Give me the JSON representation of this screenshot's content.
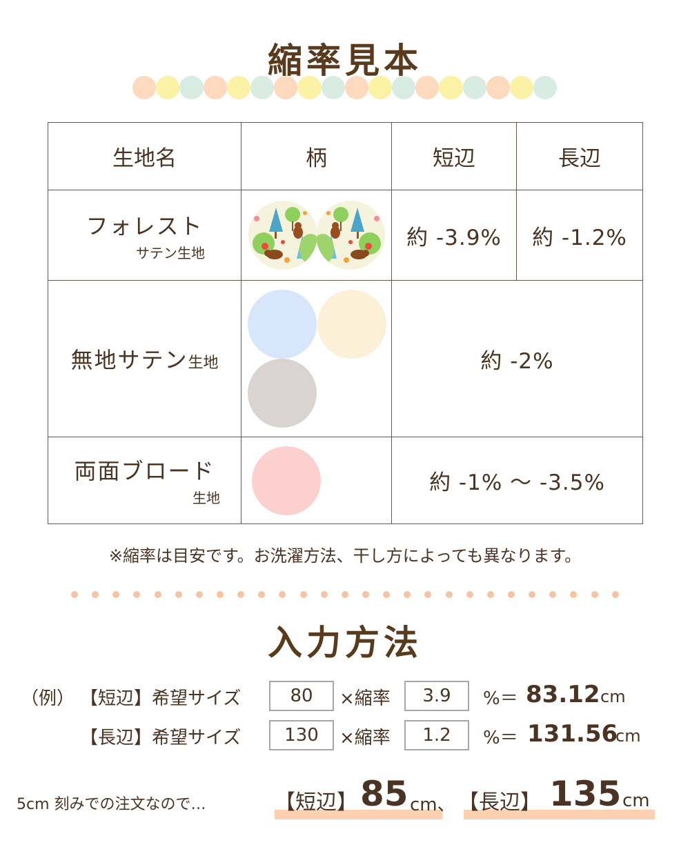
{
  "section1": {
    "title": "縮率見本",
    "scallop_colors": [
      "#fdd9bd",
      "#fcf2a6",
      "#d8ece4",
      "#fdd9bd",
      "#fcf2a6",
      "#d8ece4",
      "#fdd9bd",
      "#fcf2a6",
      "#d8ece4",
      "#fdd9bd",
      "#fcf2a6",
      "#d8ece4",
      "#fdd9bd",
      "#fcf2a6",
      "#d8ece4",
      "#fdd9bd",
      "#fcf2a6",
      "#d8ece4"
    ]
  },
  "table": {
    "headers": [
      "生地名",
      "柄",
      "短辺",
      "長辺"
    ],
    "rows": [
      {
        "name": "フォレスト",
        "sub": "サテン生地",
        "short": "約 -3.9%",
        "long": "約 -1.2%",
        "swatches": [
          "forest-pattern",
          "forest-pattern"
        ]
      },
      {
        "name": "無地サテン",
        "sub": "生地",
        "combined": "約 -2%",
        "swatch_colors": [
          "#d7e6fb",
          "#fdf0d9",
          "#d9d3d1"
        ]
      },
      {
        "name": "両面ブロード",
        "sub": "生地",
        "combined": "約 -1% ～ -3.5%",
        "swatch_colors": [
          "#fdd0d0"
        ]
      }
    ]
  },
  "note": "※縮率は目安です。お洗濯方法、干し方によっても異なります。",
  "section2": {
    "title": "入力方法",
    "example_label": "（例）",
    "rows": [
      {
        "label": "【短辺】希望サイズ",
        "size": "80",
        "times": "×縮率",
        "rate": "3.9",
        "pct": "%＝",
        "result": "83.12",
        "unit": "cm"
      },
      {
        "label": "【長辺】希望サイズ",
        "size": "130",
        "times": "×縮率",
        "rate": "1.2",
        "pct": "%＝",
        "result": "131.56",
        "unit": "cm"
      }
    ],
    "summary": {
      "lead": "5cm 刻みでの注文なので…",
      "short_label": "【短辺】",
      "short_value": "85",
      "short_unit": "cm、",
      "long_label": "【長辺】",
      "long_value": "135",
      "long_unit": "cm"
    }
  },
  "colors": {
    "brown": "#5a3a1c",
    "highlight": "#fbd1b2",
    "dot": "#f7c4a3"
  }
}
